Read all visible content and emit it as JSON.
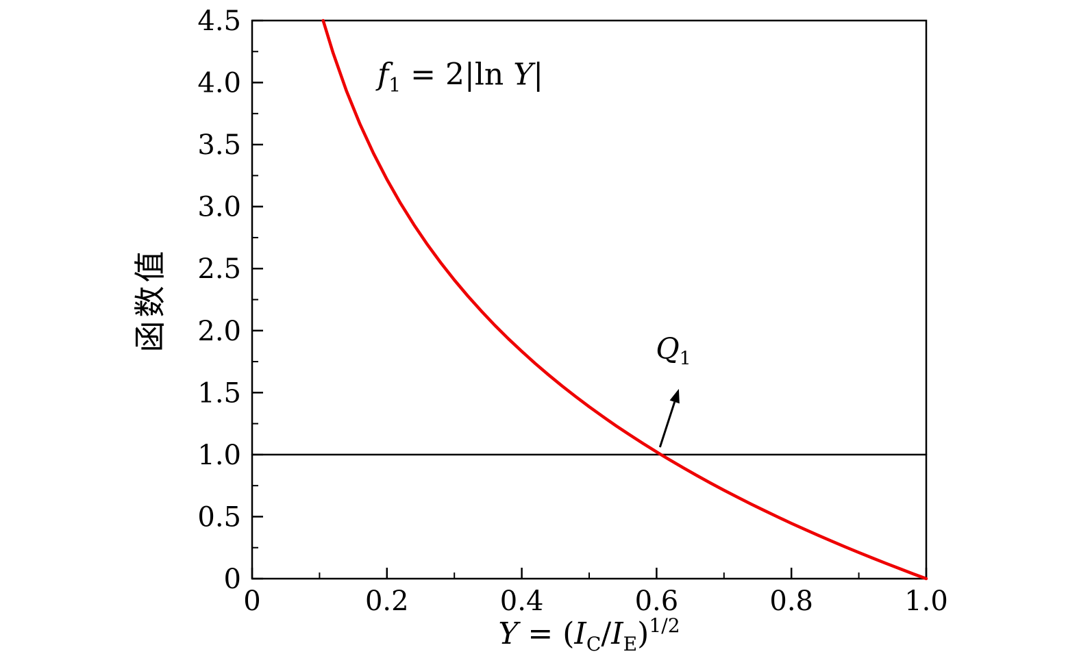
{
  "canvas": {
    "background": "#ffffff"
  },
  "chart_data": {
    "type": "line",
    "title": "",
    "ylabel": "函数值",
    "xlabel_plain": "Y = (IC/IE)^(1/2)",
    "xlabel_parts": [
      {
        "text": "Y",
        "style": "italic"
      },
      {
        "text": " = (",
        "style": "normal"
      },
      {
        "text": "I",
        "style": "italic"
      },
      {
        "text": "C",
        "style": "sub"
      },
      {
        "text": "/",
        "style": "normal"
      },
      {
        "text": "I",
        "style": "italic"
      },
      {
        "text": "E",
        "style": "sub"
      },
      {
        "text": ")",
        "style": "normal"
      },
      {
        "text": "1/2",
        "style": "sup"
      }
    ],
    "xlim": [
      0,
      1.0
    ],
    "ylim": [
      0,
      4.5
    ],
    "x_major_ticks": [
      0,
      0.2,
      0.4,
      0.6,
      0.8,
      1.0
    ],
    "x_tick_labels": [
      "0",
      "0.2",
      "0.4",
      "0.6",
      "0.8",
      "1.0"
    ],
    "x_minor_step": 0.1,
    "y_major_ticks": [
      0,
      0.5,
      1.0,
      1.5,
      2.0,
      2.5,
      3.0,
      3.5,
      4.0,
      4.5
    ],
    "y_tick_labels": [
      "0",
      "0.5",
      "1.0",
      "1.5",
      "2.0",
      "2.5",
      "3.0",
      "3.5",
      "4.0",
      "4.5"
    ],
    "y_minor_step": 0.25,
    "grid": false,
    "axis_color": "#000000",
    "tick_label_color": "#000000",
    "series": [
      {
        "name": "reference-line-y-equals-1",
        "label": "horizontal line at f = 1",
        "color": "#000000",
        "width": 2.5,
        "points": [
          [
            0,
            1.0
          ],
          [
            1.0,
            1.0
          ]
        ]
      },
      {
        "name": "f1-curve",
        "label": "f1 = 2|ln Y|",
        "formula": "f1(Y) = 2*|ln(Y)|",
        "color": "#ee0000",
        "width": 4.5,
        "points": [
          [
            0.1054,
            4.5
          ],
          [
            0.12,
            4.241
          ],
          [
            0.14,
            3.932
          ],
          [
            0.16,
            3.665
          ],
          [
            0.18,
            3.43
          ],
          [
            0.2,
            3.219
          ],
          [
            0.22,
            3.028
          ],
          [
            0.24,
            2.854
          ],
          [
            0.26,
            2.694
          ],
          [
            0.28,
            2.546
          ],
          [
            0.3,
            2.408
          ],
          [
            0.32,
            2.279
          ],
          [
            0.34,
            2.158
          ],
          [
            0.36,
            2.043
          ],
          [
            0.38,
            1.935
          ],
          [
            0.4,
            1.833
          ],
          [
            0.42,
            1.735
          ],
          [
            0.44,
            1.642
          ],
          [
            0.46,
            1.553
          ],
          [
            0.48,
            1.468
          ],
          [
            0.5,
            1.386
          ],
          [
            0.52,
            1.308
          ],
          [
            0.54,
            1.232
          ],
          [
            0.56,
            1.16
          ],
          [
            0.58,
            1.09
          ],
          [
            0.6,
            1.022
          ],
          [
            0.6065,
            1.0
          ],
          [
            0.62,
            0.956
          ],
          [
            0.64,
            0.893
          ],
          [
            0.66,
            0.831
          ],
          [
            0.68,
            0.771
          ],
          [
            0.7,
            0.713
          ],
          [
            0.72,
            0.657
          ],
          [
            0.74,
            0.602
          ],
          [
            0.76,
            0.549
          ],
          [
            0.78,
            0.497
          ],
          [
            0.8,
            0.446
          ],
          [
            0.82,
            0.397
          ],
          [
            0.84,
            0.349
          ],
          [
            0.86,
            0.302
          ],
          [
            0.88,
            0.256
          ],
          [
            0.9,
            0.211
          ],
          [
            0.92,
            0.167
          ],
          [
            0.94,
            0.124
          ],
          [
            0.96,
            0.082
          ],
          [
            0.98,
            0.04
          ],
          [
            1.0,
            0.0
          ]
        ]
      }
    ],
    "annotations": {
      "curve_label": {
        "plain": "f1 = 2|ln Y|",
        "x": 0.309,
        "y": 4.05,
        "parts": [
          {
            "text": "f",
            "style": "italic"
          },
          {
            "text": "1",
            "style": "sub"
          },
          {
            "text": " = 2|ln ",
            "style": "normal"
          },
          {
            "text": "Y",
            "style": "italic"
          },
          {
            "text": "|",
            "style": "normal"
          }
        ]
      },
      "point_label": {
        "plain": "Q1",
        "x": 0.625,
        "y": 1.84,
        "marks_point": [
          0.6065,
          1.0
        ],
        "parts": [
          {
            "text": "Q",
            "style": "italic"
          },
          {
            "text": "1",
            "style": "sub"
          }
        ]
      },
      "arrow": {
        "from": [
          0.605,
          1.06
        ],
        "to": [
          0.633,
          1.53
        ]
      }
    }
  }
}
